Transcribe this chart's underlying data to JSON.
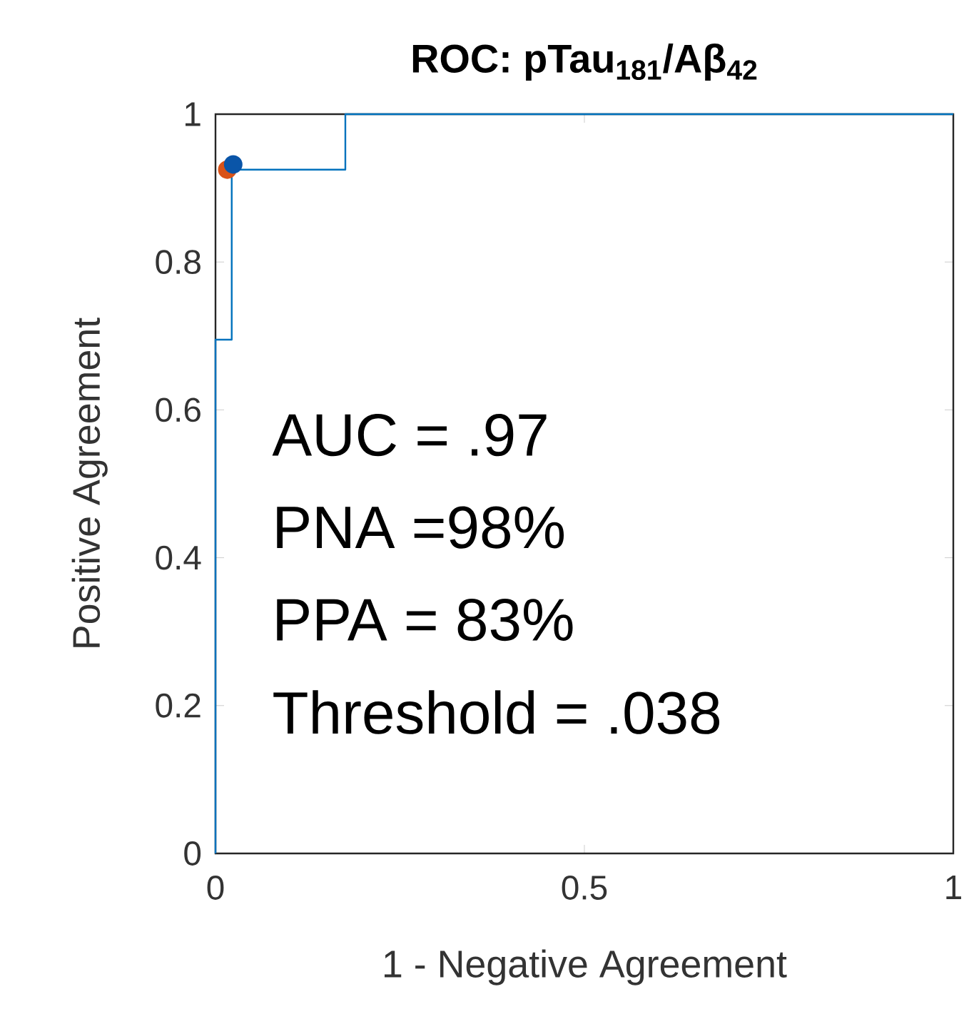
{
  "chart_data": {
    "type": "step",
    "title": "ROC: pTau$_{181}$/Aβ$_{42}$",
    "xlabel": "1 - Negative Agreement",
    "ylabel": "Positive Agreement",
    "xlim": [
      0,
      1
    ],
    "ylim": [
      0,
      1
    ],
    "xticks": [
      0,
      0.5,
      1
    ],
    "yticks": [
      0,
      0.2,
      0.4,
      0.6,
      0.8,
      1
    ],
    "grid": false,
    "series": [
      {
        "color": "#0072bd",
        "marker": "none",
        "x": [
          0,
          0,
          0.022,
          0.022,
          0.176,
          0.176,
          1
        ],
        "values": [
          0,
          0.695,
          0.695,
          0.925,
          0.925,
          1,
          1
        ]
      },
      {
        "type": "scatter",
        "color": "#d95319",
        "marker": "circle",
        "x": [
          0.016
        ],
        "values": [
          0.925
        ]
      },
      {
        "type": "scatter",
        "color": "#0a55a8",
        "marker": "circle",
        "x": [
          0.024
        ],
        "values": [
          0.932
        ]
      }
    ],
    "annotations": [
      "AUC = .97",
      "PNA =98%",
      "PPA = 83%",
      "Threshold = .038"
    ]
  }
}
